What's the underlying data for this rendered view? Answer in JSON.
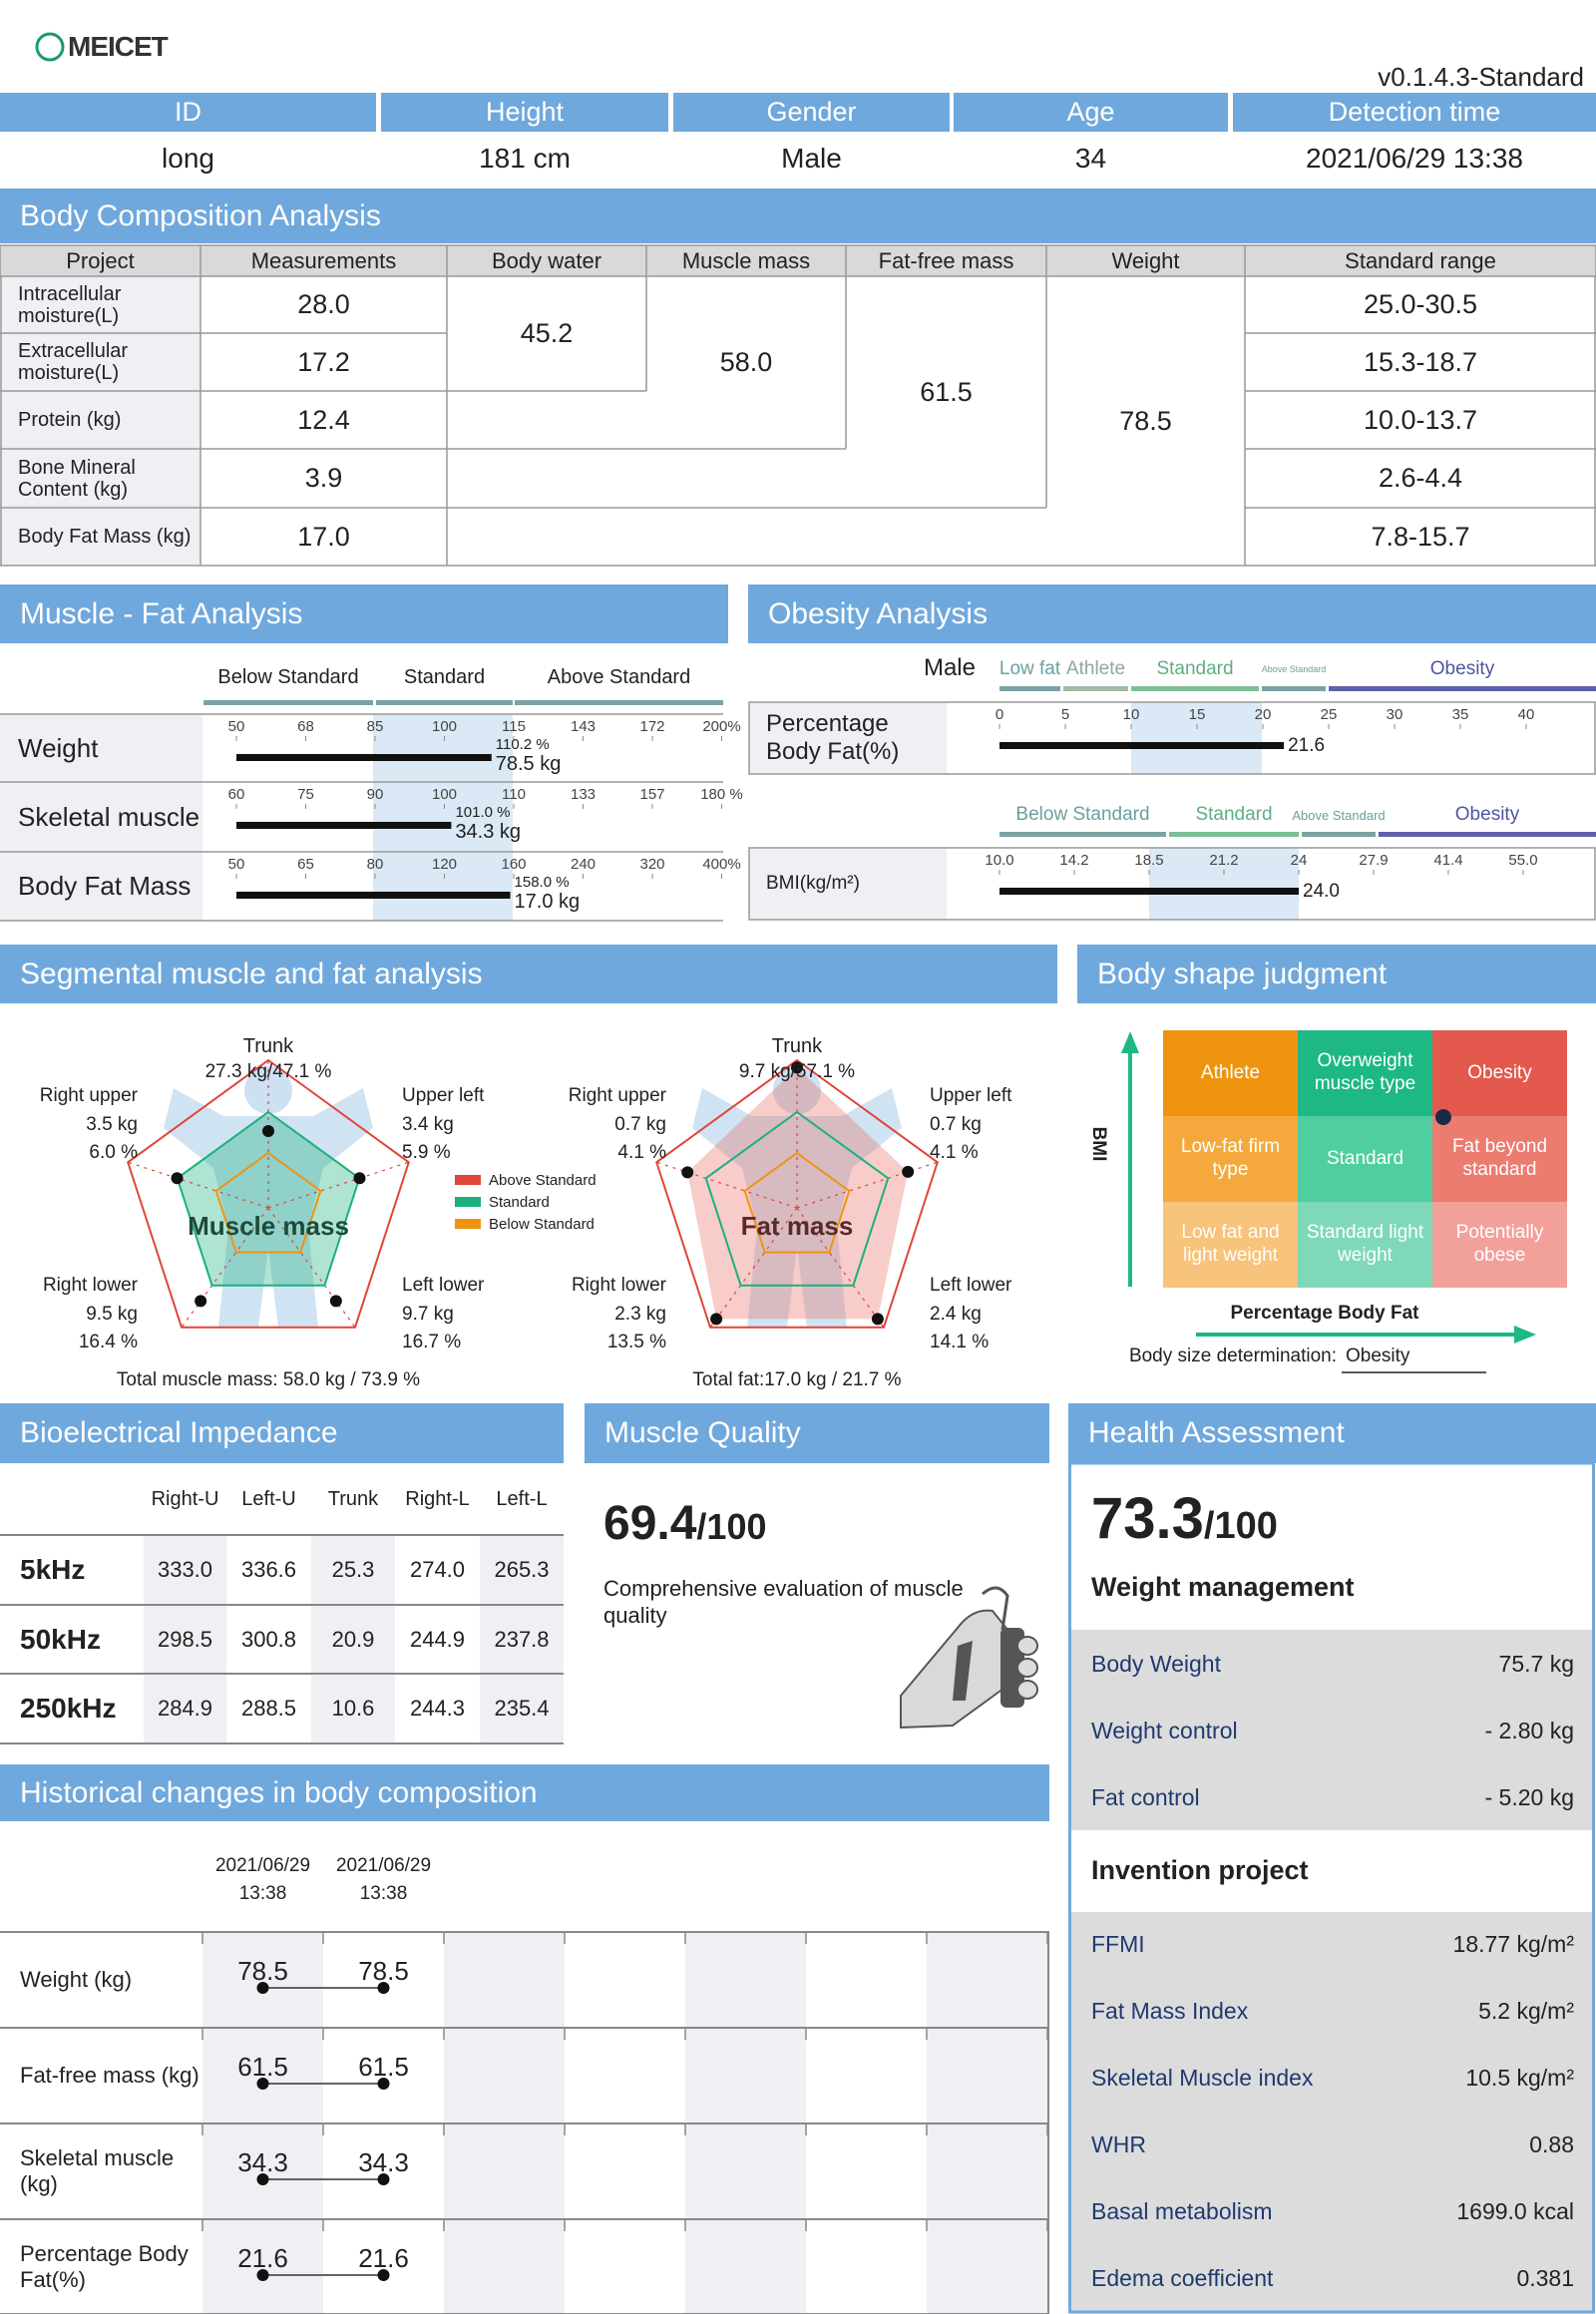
{
  "header": {
    "logo": "MEICET",
    "version": "v0.1.4.3-Standard"
  },
  "info": {
    "headers": [
      "ID",
      "Height",
      "Gender",
      "Age",
      "Detection time"
    ],
    "values": [
      "long",
      "181 cm",
      "Male",
      "34",
      "2021/06/29 13:38"
    ]
  },
  "composition": {
    "title": "Body Composition Analysis",
    "headers": [
      "Project",
      "Measurements",
      "Body water",
      "Muscle mass",
      "Fat-free mass",
      "Weight",
      "Standard range"
    ],
    "rows": [
      [
        "Intracellular moisture(L)",
        "28.0",
        "25.0-30.5"
      ],
      [
        "Extracellular moisture(L)",
        "17.2",
        "15.3-18.7"
      ],
      [
        "Protein (kg)",
        "12.4",
        "10.0-13.7"
      ],
      [
        "Bone Mineral Content (kg)",
        "3.9",
        "2.6-4.4"
      ],
      [
        "Body Fat Mass (kg)",
        "17.0",
        "7.8-15.7"
      ]
    ],
    "totals": [
      "45.2",
      "58.0",
      "61.5",
      "78.5"
    ]
  },
  "muscle_fat": {
    "title": "Muscle - Fat Analysis",
    "bands": [
      "Below Standard",
      "Standard",
      "Above Standard"
    ],
    "rows": [
      {
        "name": "Weight",
        "ticks": [
          50,
          68,
          85,
          100,
          115,
          143,
          172,
          {
            "value": 200,
            "label": "200%"
          }
        ],
        "value": 110.2,
        "value_label": "110.2 %",
        "amount": "78.5 kg"
      },
      {
        "name": "Skeletal muscle",
        "ticks": [
          60,
          75,
          90,
          100,
          110,
          133,
          157,
          {
            "value": 180,
            "label": "180 %"
          }
        ],
        "value": 101.0,
        "value_label": "101.0 %",
        "amount": "34.3 kg"
      },
      {
        "name": "Body Fat Mass",
        "ticks": [
          50,
          65,
          80,
          120,
          160,
          240,
          320,
          {
            "value": 400,
            "label": "400%"
          }
        ],
        "value": 158.0,
        "value_label": "158.0 %",
        "amount": "17.0 kg"
      }
    ]
  },
  "obesity": {
    "title": "Obesity Analysis",
    "gender": "Male",
    "pbf": {
      "name": "Percentage Body Fat(%)",
      "bands": [
        "Low fat",
        "Athlete",
        "Standard",
        "Above Standard",
        "Obesity"
      ],
      "ticks": [
        0,
        5,
        10,
        15,
        20,
        25,
        30,
        35,
        40
      ],
      "value": 21.6
    },
    "bmi": {
      "name": "BMI(kg/m²)",
      "bands": [
        "Below Standard",
        "Standard",
        "Above Standard",
        "Obesity"
      ],
      "ticks": [
        {
          "value": 10,
          "label": "10.0"
        },
        14.2,
        18.5,
        21.2,
        24,
        27.9,
        41.4,
        {
          "value": 55,
          "label": "55.0"
        }
      ],
      "value": 24,
      "value_label": "24.0"
    }
  },
  "segmental": {
    "title": "Segmental muscle and fat analysis",
    "legend": [
      "Above Standard",
      "Standard",
      "Below Standard"
    ],
    "muscle": {
      "center": "Muscle mass",
      "trunk": "Trunk",
      "trunk_value": "27.3 kg/47.1 %",
      "segments": [
        {
          "name": "Right upper",
          "kg": "3.5 kg",
          "pct": "6.0 %"
        },
        {
          "name": "Upper left",
          "kg": "3.4 kg",
          "pct": "5.9 %"
        },
        {
          "name": "Right lower",
          "kg": "9.5 kg",
          "pct": "16.4 %"
        },
        {
          "name": "Left lower",
          "kg": "9.7 kg",
          "pct": "16.7 %"
        }
      ],
      "total": "Total muscle mass:  58.0 kg / 73.9 %"
    },
    "fat": {
      "center": "Fat mass",
      "trunk": "Trunk",
      "trunk_value": "9.7 kg/57.1 %",
      "segments": [
        {
          "name": "Right upper",
          "kg": "0.7 kg",
          "pct": "4.1 %"
        },
        {
          "name": "Upper left",
          "kg": "0.7 kg",
          "pct": "4.1 %"
        },
        {
          "name": "Right lower",
          "kg": "2.3 kg",
          "pct": "13.5 %"
        },
        {
          "name": "Left lower",
          "kg": "2.4 kg",
          "pct": "14.1 %"
        }
      ],
      "total": "Total fat:17.0 kg / 21.7 %"
    }
  },
  "body_shape": {
    "title": "Body shape judgment",
    "cells": [
      [
        "Athlete",
        "Overweight muscle type",
        "Obesity"
      ],
      [
        "Low-fat firm type",
        "Standard",
        "Fat beyond standard"
      ],
      [
        "Low fat and light weight",
        "Standard light weight",
        "Potentially obese"
      ]
    ],
    "y_label": "BMI",
    "x_label": "Percentage Body Fat",
    "result_label": "Body size determination:",
    "result": "Obesity"
  },
  "impedance": {
    "title": "Bioelectrical Impedance",
    "headers": [
      "Right-U",
      "Left-U",
      "Trunk",
      "Right-L",
      "Left-L"
    ],
    "rows": [
      {
        "freq": "5kHz",
        "values": [
          "333.0",
          "336.6",
          "25.3",
          "274.0",
          "265.3"
        ]
      },
      {
        "freq": "50kHz",
        "values": [
          "298.5",
          "300.8",
          "20.9",
          "244.9",
          "237.8"
        ]
      },
      {
        "freq": "250kHz",
        "values": [
          "284.9",
          "288.5",
          "10.6",
          "244.3",
          "235.4"
        ]
      }
    ]
  },
  "muscle_quality": {
    "title": "Muscle Quality",
    "score": "69.4",
    "max": "/100",
    "text": "Comprehensive evaluation of muscle quality"
  },
  "health": {
    "title": "Health Assessment",
    "score": "73.3",
    "max": "/100",
    "weight_title": "Weight management",
    "weight_rows": [
      [
        "Body Weight",
        "75.7 kg"
      ],
      [
        "Weight control",
        "- 2.80 kg"
      ],
      [
        "Fat control",
        "- 5.20 kg"
      ]
    ],
    "project_title": "Invention project",
    "project_rows": [
      [
        "FFMI",
        "18.77 kg/m²"
      ],
      [
        "Fat Mass Index",
        "5.2 kg/m²"
      ],
      [
        "Skeletal Muscle index",
        "10.5 kg/m²"
      ],
      [
        "WHR",
        "0.88"
      ],
      [
        "Basal metabolism",
        "1699.0 kcal"
      ],
      [
        "Edema coefficient",
        "0.381"
      ]
    ]
  },
  "history": {
    "title": "Historical changes in body composition",
    "dates": [
      "2021/06/29 13:38",
      "2021/06/29 13:38"
    ],
    "rows": [
      {
        "name": "Weight (kg)",
        "values": [
          "78.5",
          "78.5"
        ]
      },
      {
        "name": "Fat-free mass (kg)",
        "values": [
          "61.5",
          "61.5"
        ]
      },
      {
        "name": "Skeletal muscle (kg)",
        "values": [
          "34.3",
          "34.3"
        ]
      },
      {
        "name": "Percentage Body Fat(%)",
        "values": [
          "21.6",
          "21.6"
        ]
      }
    ]
  }
}
